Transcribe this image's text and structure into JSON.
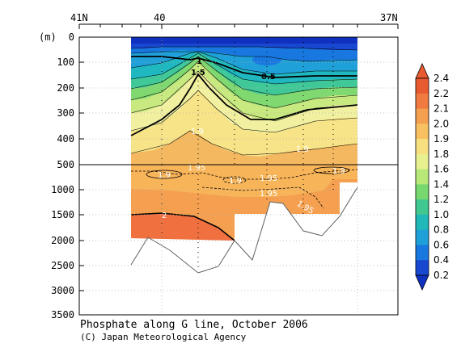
{
  "chart_data": {
    "type": "heatmap",
    "title": "Phosphate along G line, October 2006",
    "credit": "(C) Japan Meteorological Agency",
    "ylabel": "(m)",
    "x_ticks": [
      "41N",
      "40",
      "37N"
    ],
    "y_ticks_upper": [
      "0",
      "100",
      "200",
      "300",
      "400",
      "500"
    ],
    "y_ticks_lower": [
      "1000",
      "1500",
      "2000",
      "2500",
      "3000",
      "3500"
    ],
    "ylim_upper": [
      0,
      500
    ],
    "ylim_lower": [
      500,
      3500
    ],
    "colorbar": {
      "levels": [
        "2.4",
        "2.2",
        "2.1",
        "2.0",
        "1.9",
        "1.8",
        "1.6",
        "1.4",
        "1.2",
        "1.0",
        "0.8",
        "0.6",
        "0.4",
        "0.2"
      ],
      "colors": [
        "#e85a30",
        "#f07a40",
        "#f4a050",
        "#f8c060",
        "#f8e080",
        "#e8f090",
        "#b8e878",
        "#78d870",
        "#40c890",
        "#20b8b8",
        "#20a0d8",
        "#1878e0",
        "#1848d0"
      ]
    },
    "contour_labels": [
      "1",
      "1.5",
      "0.5",
      "1.9",
      "1.9",
      "1.95",
      "1.9",
      "1.9",
      "1.95",
      "1.9",
      "1.95",
      "1.95",
      "2"
    ]
  }
}
